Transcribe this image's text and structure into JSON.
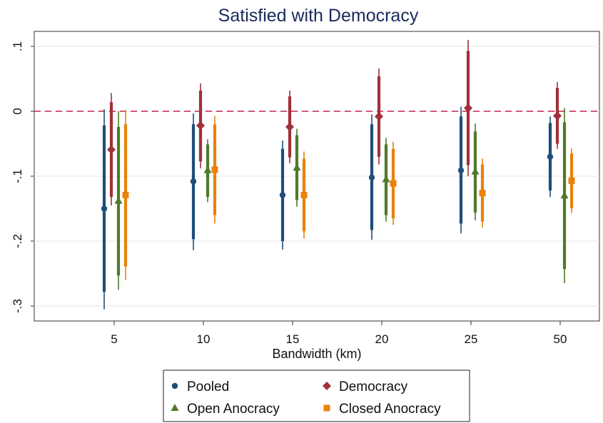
{
  "chart_data": {
    "type": "scatter",
    "title": "Satisfied with Democracy",
    "xlabel": "Bandwidth (km)",
    "ylabel": "",
    "categories": [
      "5",
      "10",
      "15",
      "20",
      "25",
      "50"
    ],
    "y_ticks": [
      ".1",
      "0",
      "-.1",
      "-.2",
      "-.3"
    ],
    "y_tick_values": [
      0.1,
      0,
      -0.1,
      -0.2,
      -0.3
    ],
    "ylim": [
      -0.34,
      0.125
    ],
    "reference_line": {
      "y": 0,
      "style": "dashed",
      "color": "#c0204a"
    },
    "grid": true,
    "legend_position": "bottom",
    "series": [
      {
        "name": "Pooled",
        "marker": "circle",
        "color": "#1f4e79",
        "points": [
          {
            "x": "5",
            "y": -0.15,
            "ci95": [
              -0.305,
              0.003
            ],
            "ci90": [
              -0.278,
              -0.022
            ]
          },
          {
            "x": "10",
            "y": -0.108,
            "ci95": [
              -0.214,
              -0.003
            ],
            "ci90": [
              -0.197,
              -0.02
            ]
          },
          {
            "x": "15",
            "y": -0.129,
            "ci95": [
              -0.213,
              -0.045
            ],
            "ci90": [
              -0.2,
              -0.058
            ]
          },
          {
            "x": "20",
            "y": -0.102,
            "ci95": [
              -0.198,
              -0.005
            ],
            "ci90": [
              -0.183,
              -0.02
            ]
          },
          {
            "x": "25",
            "y": -0.091,
            "ci95": [
              -0.188,
              0.007
            ],
            "ci90": [
              -0.173,
              -0.008
            ]
          },
          {
            "x": "50",
            "y": -0.07,
            "ci95": [
              -0.132,
              -0.008
            ],
            "ci90": [
              -0.122,
              -0.018
            ]
          }
        ]
      },
      {
        "name": "Democracy",
        "marker": "diamond",
        "color": "#a0303a",
        "points": [
          {
            "x": "5",
            "y": -0.059,
            "ci95": [
              -0.145,
              0.028
            ],
            "ci90": [
              -0.132,
              0.014
            ]
          },
          {
            "x": "10",
            "y": -0.022,
            "ci95": [
              -0.088,
              0.043
            ],
            "ci90": [
              -0.077,
              0.032
            ]
          },
          {
            "x": "15",
            "y": -0.024,
            "ci95": [
              -0.08,
              0.032
            ],
            "ci90": [
              -0.071,
              0.023
            ]
          },
          {
            "x": "20",
            "y": -0.008,
            "ci95": [
              -0.082,
              0.066
            ],
            "ci90": [
              -0.07,
              0.054
            ]
          },
          {
            "x": "25",
            "y": 0.005,
            "ci95": [
              -0.1,
              0.11
            ],
            "ci90": [
              -0.083,
              0.093
            ]
          },
          {
            "x": "50",
            "y": -0.007,
            "ci95": [
              -0.058,
              0.045
            ],
            "ci90": [
              -0.05,
              0.036
            ]
          }
        ]
      },
      {
        "name": "Open Anocracy",
        "marker": "triangle",
        "color": "#4f7a2a",
        "points": [
          {
            "x": "5",
            "y": -0.138,
            "ci95": [
              -0.275,
              0.0
            ],
            "ci90": [
              -0.253,
              -0.024
            ]
          },
          {
            "x": "10",
            "y": -0.091,
            "ci95": [
              -0.14,
              -0.043
            ],
            "ci90": [
              -0.132,
              -0.051
            ]
          },
          {
            "x": "15",
            "y": -0.087,
            "ci95": [
              -0.147,
              -0.027
            ],
            "ci90": [
              -0.137,
              -0.037
            ]
          },
          {
            "x": "20",
            "y": -0.105,
            "ci95": [
              -0.17,
              -0.041
            ],
            "ci90": [
              -0.16,
              -0.051
            ]
          },
          {
            "x": "25",
            "y": -0.093,
            "ci95": [
              -0.168,
              -0.019
            ],
            "ci90": [
              -0.156,
              -0.031
            ]
          },
          {
            "x": "50",
            "y": -0.13,
            "ci95": [
              -0.265,
              0.005
            ],
            "ci90": [
              -0.243,
              -0.017
            ]
          }
        ]
      },
      {
        "name": "Closed Anocracy",
        "marker": "square",
        "color": "#e8820c",
        "points": [
          {
            "x": "5",
            "y": -0.129,
            "ci95": [
              -0.26,
              0.002
            ],
            "ci90": [
              -0.239,
              -0.02
            ]
          },
          {
            "x": "10",
            "y": -0.09,
            "ci95": [
              -0.173,
              -0.007
            ],
            "ci90": [
              -0.16,
              -0.02
            ]
          },
          {
            "x": "15",
            "y": -0.129,
            "ci95": [
              -0.196,
              -0.062
            ],
            "ci90": [
              -0.185,
              -0.073
            ]
          },
          {
            "x": "20",
            "y": -0.111,
            "ci95": [
              -0.175,
              -0.047
            ],
            "ci90": [
              -0.165,
              -0.058
            ]
          },
          {
            "x": "25",
            "y": -0.126,
            "ci95": [
              -0.179,
              -0.073
            ],
            "ci90": [
              -0.17,
              -0.082
            ]
          },
          {
            "x": "50",
            "y": -0.107,
            "ci95": [
              -0.157,
              -0.057
            ],
            "ci90": [
              -0.149,
              -0.065
            ]
          }
        ]
      }
    ]
  }
}
